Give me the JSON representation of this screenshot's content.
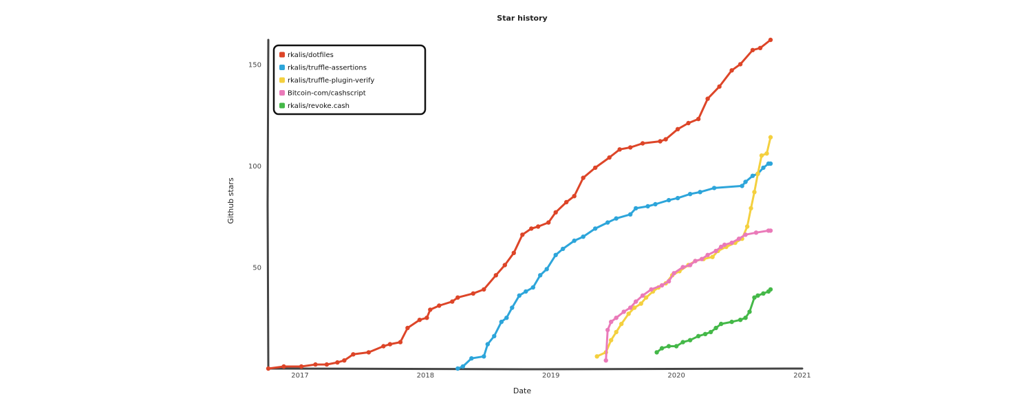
{
  "chart_data": {
    "type": "line",
    "title": "Star history",
    "xlabel": "Date",
    "ylabel": "Github stars",
    "x_axis": {
      "min": "2016-10-01",
      "max": "2021-01-01",
      "ticks": [
        "2017",
        "2018",
        "2019",
        "2020",
        "2021"
      ]
    },
    "y_axis": {
      "min": 0,
      "max": 162,
      "ticks": [
        50,
        100,
        150
      ]
    },
    "grid": false,
    "legend_position": "top-left",
    "series": [
      {
        "name": "rkalis/dotfiles",
        "color": "#dd4528",
        "points": [
          [
            "2016-10-01",
            0
          ],
          [
            "2016-11-15",
            1
          ],
          [
            "2017-01-05",
            1
          ],
          [
            "2017-02-15",
            2
          ],
          [
            "2017-03-20",
            2
          ],
          [
            "2017-04-20",
            3
          ],
          [
            "2017-05-10",
            4
          ],
          [
            "2017-06-05",
            7
          ],
          [
            "2017-07-20",
            8
          ],
          [
            "2017-09-01",
            11
          ],
          [
            "2017-09-20",
            12
          ],
          [
            "2017-10-20",
            13
          ],
          [
            "2017-11-10",
            20
          ],
          [
            "2017-12-15",
            24
          ],
          [
            "2018-01-05",
            25
          ],
          [
            "2018-01-15",
            29
          ],
          [
            "2018-02-10",
            31
          ],
          [
            "2018-03-20",
            33
          ],
          [
            "2018-04-05",
            35
          ],
          [
            "2018-05-20",
            37
          ],
          [
            "2018-06-20",
            39
          ],
          [
            "2018-07-25",
            46
          ],
          [
            "2018-08-20",
            51
          ],
          [
            "2018-09-15",
            57
          ],
          [
            "2018-10-10",
            66
          ],
          [
            "2018-11-05",
            69
          ],
          [
            "2018-11-25",
            70
          ],
          [
            "2018-12-25",
            72
          ],
          [
            "2019-01-15",
            77
          ],
          [
            "2019-02-15",
            82
          ],
          [
            "2019-03-10",
            85
          ],
          [
            "2019-04-05",
            94
          ],
          [
            "2019-05-10",
            99
          ],
          [
            "2019-06-20",
            104
          ],
          [
            "2019-07-20",
            108
          ],
          [
            "2019-08-20",
            109
          ],
          [
            "2019-09-25",
            111
          ],
          [
            "2019-11-15",
            112
          ],
          [
            "2019-12-01",
            113
          ],
          [
            "2020-01-05",
            118
          ],
          [
            "2020-02-05",
            121
          ],
          [
            "2020-03-05",
            123
          ],
          [
            "2020-04-01",
            133
          ],
          [
            "2020-05-05",
            139
          ],
          [
            "2020-06-10",
            147
          ],
          [
            "2020-07-05",
            150
          ],
          [
            "2020-08-10",
            157
          ],
          [
            "2020-09-01",
            158
          ],
          [
            "2020-10-01",
            162
          ]
        ]
      },
      {
        "name": "rkalis/truffle-assertions",
        "color": "#2da5da",
        "points": [
          [
            "2018-04-05",
            0
          ],
          [
            "2018-04-20",
            1
          ],
          [
            "2018-05-15",
            5
          ],
          [
            "2018-06-20",
            6
          ],
          [
            "2018-07-01",
            12
          ],
          [
            "2018-07-20",
            16
          ],
          [
            "2018-08-10",
            23
          ],
          [
            "2018-08-25",
            25
          ],
          [
            "2018-09-10",
            30
          ],
          [
            "2018-10-01",
            36
          ],
          [
            "2018-10-20",
            38
          ],
          [
            "2018-11-10",
            40
          ],
          [
            "2018-12-01",
            46
          ],
          [
            "2018-12-20",
            49
          ],
          [
            "2019-01-15",
            56
          ],
          [
            "2019-02-05",
            59
          ],
          [
            "2019-03-10",
            63
          ],
          [
            "2019-04-05",
            65
          ],
          [
            "2019-05-10",
            69
          ],
          [
            "2019-06-15",
            72
          ],
          [
            "2019-07-10",
            74
          ],
          [
            "2019-08-20",
            76
          ],
          [
            "2019-09-05",
            79
          ],
          [
            "2019-10-10",
            80
          ],
          [
            "2019-11-01",
            81
          ],
          [
            "2019-12-10",
            83
          ],
          [
            "2020-01-05",
            84
          ],
          [
            "2020-02-10",
            86
          ],
          [
            "2020-03-10",
            87
          ],
          [
            "2020-04-20",
            89
          ],
          [
            "2020-07-10",
            90
          ],
          [
            "2020-07-20",
            92
          ],
          [
            "2020-08-10",
            95
          ],
          [
            "2020-08-25",
            96
          ],
          [
            "2020-09-10",
            99
          ],
          [
            "2020-09-25",
            101
          ],
          [
            "2020-10-01",
            101
          ]
        ]
      },
      {
        "name": "rkalis/truffle-plugin-verify",
        "color": "#f4d03f",
        "points": [
          [
            "2019-05-15",
            6
          ],
          [
            "2019-06-10",
            8
          ],
          [
            "2019-06-25",
            14
          ],
          [
            "2019-07-10",
            18
          ],
          [
            "2019-07-25",
            22
          ],
          [
            "2019-08-15",
            27
          ],
          [
            "2019-09-01",
            30
          ],
          [
            "2019-09-20",
            32
          ],
          [
            "2019-10-05",
            35
          ],
          [
            "2019-10-25",
            38
          ],
          [
            "2019-11-10",
            40
          ],
          [
            "2019-12-01",
            42
          ],
          [
            "2019-12-20",
            46
          ],
          [
            "2020-01-10",
            48
          ],
          [
            "2020-02-05",
            51
          ],
          [
            "2020-02-25",
            53
          ],
          [
            "2020-03-20",
            54
          ],
          [
            "2020-04-15",
            55
          ],
          [
            "2020-05-01",
            58
          ],
          [
            "2020-05-25",
            60
          ],
          [
            "2020-06-20",
            62
          ],
          [
            "2020-07-10",
            64
          ],
          [
            "2020-07-25",
            70
          ],
          [
            "2020-08-05",
            79
          ],
          [
            "2020-08-15",
            87
          ],
          [
            "2020-08-25",
            96
          ],
          [
            "2020-09-05",
            105
          ],
          [
            "2020-09-20",
            106
          ],
          [
            "2020-10-01",
            114
          ]
        ]
      },
      {
        "name": "Bitcoin-com/cashscript",
        "color": "#ea7ab9",
        "points": [
          [
            "2019-06-10",
            4
          ],
          [
            "2019-06-15",
            19
          ],
          [
            "2019-06-25",
            23
          ],
          [
            "2019-07-10",
            25
          ],
          [
            "2019-08-01",
            28
          ],
          [
            "2019-08-20",
            30
          ],
          [
            "2019-09-05",
            33
          ],
          [
            "2019-09-25",
            36
          ],
          [
            "2019-10-20",
            39
          ],
          [
            "2019-11-20",
            41
          ],
          [
            "2019-12-10",
            43
          ],
          [
            "2019-12-25",
            47
          ],
          [
            "2020-01-20",
            50
          ],
          [
            "2020-02-10",
            51
          ],
          [
            "2020-02-25",
            53
          ],
          [
            "2020-03-15",
            54
          ],
          [
            "2020-04-01",
            56
          ],
          [
            "2020-04-25",
            58
          ],
          [
            "2020-05-10",
            60
          ],
          [
            "2020-05-20",
            61
          ],
          [
            "2020-06-10",
            62
          ],
          [
            "2020-07-01",
            64
          ],
          [
            "2020-07-20",
            66
          ],
          [
            "2020-08-20",
            67
          ],
          [
            "2020-09-25",
            68
          ],
          [
            "2020-10-01",
            68
          ]
        ]
      },
      {
        "name": "rkalis/revoke.cash",
        "color": "#44b848",
        "points": [
          [
            "2019-11-05",
            8
          ],
          [
            "2019-11-20",
            10
          ],
          [
            "2019-12-10",
            11
          ],
          [
            "2020-01-01",
            11
          ],
          [
            "2020-01-20",
            13
          ],
          [
            "2020-02-10",
            14
          ],
          [
            "2020-03-05",
            16
          ],
          [
            "2020-03-25",
            17
          ],
          [
            "2020-04-10",
            18
          ],
          [
            "2020-04-25",
            20
          ],
          [
            "2020-05-10",
            22
          ],
          [
            "2020-06-10",
            23
          ],
          [
            "2020-07-05",
            24
          ],
          [
            "2020-07-20",
            25
          ],
          [
            "2020-08-01",
            28
          ],
          [
            "2020-08-15",
            35
          ],
          [
            "2020-08-25",
            36
          ],
          [
            "2020-09-10",
            37
          ],
          [
            "2020-09-25",
            38
          ],
          [
            "2020-10-01",
            39
          ]
        ]
      }
    ]
  }
}
